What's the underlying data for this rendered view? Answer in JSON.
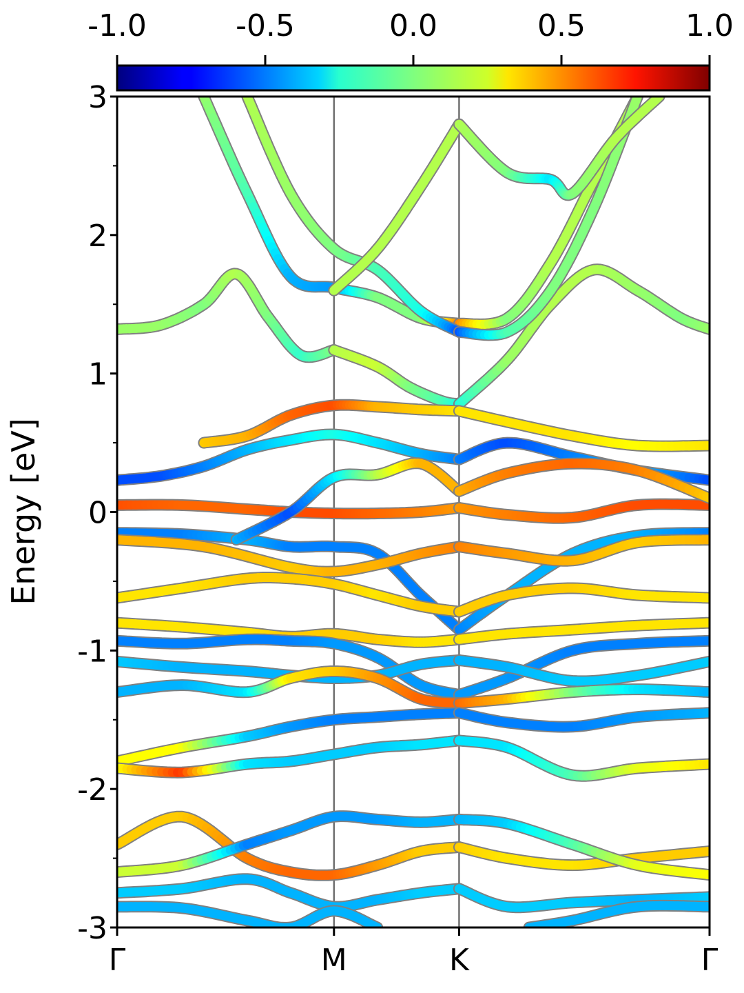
{
  "chart_data": {
    "type": "line",
    "title": "",
    "xlabel": "",
    "ylabel": "Energy [eV]",
    "ylim": [
      -3,
      3
    ],
    "y_ticks": [
      "3",
      "2",
      "1",
      "0",
      "-1",
      "-2",
      "-3"
    ],
    "y_tick_values": [
      3,
      2,
      1,
      0,
      -1,
      -2,
      -3
    ],
    "x_path": [
      0,
      1.0,
      1.577,
      2.732
    ],
    "x_ticks": [
      "Γ",
      "M",
      "K",
      "Γ"
    ],
    "colorbar": {
      "colormap": "jet",
      "range": [
        -1.0,
        1.0
      ],
      "ticks": [
        "-1.0",
        "-0.5",
        "0.0",
        "0.5",
        "1.0"
      ],
      "tick_values": [
        -1.0,
        -0.5,
        0.0,
        0.5,
        1.0
      ],
      "placement": "top"
    },
    "colors": {
      "line_outline": "#808080",
      "vertical_lines": "#707070",
      "frame": "#000000"
    },
    "series": [
      {
        "x": [
          0,
          0.2,
          0.4,
          0.55,
          0.7,
          0.85,
          1.0
        ],
        "y": [
          1.32,
          1.35,
          1.5,
          1.72,
          1.4,
          1.13,
          1.17
        ],
        "c": [
          0.05,
          0.05,
          0.0,
          0.1,
          0.0,
          -0.15,
          0.0
        ]
      },
      {
        "x": [
          1.0,
          1.2,
          1.35,
          1.5,
          1.577
        ],
        "y": [
          1.17,
          1.05,
          0.9,
          0.8,
          0.78
        ],
        "c": [
          0.1,
          0.15,
          0.0,
          -0.1,
          -0.2
        ]
      },
      {
        "x": [
          1.577,
          1.8,
          2.0,
          2.2,
          2.4,
          2.6,
          2.732
        ],
        "y": [
          0.78,
          1.1,
          1.5,
          1.75,
          1.6,
          1.4,
          1.32
        ],
        "c": [
          -0.2,
          0.05,
          0.1,
          0.1,
          0.05,
          0.0,
          0.05
        ]
      },
      {
        "x": [
          0.4,
          0.6,
          0.8,
          1.0,
          1.2,
          1.4,
          1.577
        ],
        "y": [
          0.5,
          0.55,
          0.7,
          0.77,
          0.76,
          0.74,
          0.73
        ],
        "c": [
          0.35,
          0.4,
          0.55,
          0.6,
          0.4,
          0.35,
          0.3
        ]
      },
      {
        "x": [
          1.577,
          1.8,
          2.1,
          2.4,
          2.732
        ],
        "y": [
          0.73,
          0.65,
          0.55,
          0.48,
          0.48
        ],
        "c": [
          0.3,
          0.3,
          0.3,
          0.25,
          0.3
        ]
      },
      {
        "x": [
          0,
          0.2,
          0.4,
          0.6,
          0.8,
          1.0,
          1.2,
          1.4,
          1.577
        ],
        "y": [
          0.23,
          0.26,
          0.33,
          0.45,
          0.52,
          0.56,
          0.5,
          0.42,
          0.38
        ],
        "c": [
          -0.6,
          -0.6,
          -0.5,
          -0.4,
          -0.3,
          -0.2,
          -0.3,
          -0.4,
          -0.5
        ]
      },
      {
        "x": [
          1.577,
          1.8,
          2.1,
          2.4,
          2.732
        ],
        "y": [
          0.38,
          0.5,
          0.4,
          0.3,
          0.23
        ],
        "c": [
          -0.5,
          -0.6,
          -0.5,
          -0.4,
          -0.6
        ]
      },
      {
        "x": [
          0,
          0.3,
          0.6,
          0.8,
          1.0,
          1.2,
          1.4,
          1.577
        ],
        "y": [
          0.05,
          0.05,
          0.02,
          0.0,
          -0.01,
          -0.01,
          0.0,
          0.03
        ],
        "c": [
          0.6,
          0.55,
          0.55,
          0.6,
          0.6,
          0.55,
          0.5,
          0.45
        ]
      },
      {
        "x": [
          1.577,
          1.8,
          2.1,
          2.4,
          2.732
        ],
        "y": [
          0.03,
          -0.02,
          -0.04,
          0.05,
          0.05
        ],
        "c": [
          0.45,
          0.5,
          0.55,
          0.6,
          0.6
        ]
      },
      {
        "x": [
          0,
          0.3,
          0.6,
          0.8,
          1.0,
          1.2,
          1.4,
          1.577
        ],
        "y": [
          -0.15,
          -0.16,
          -0.2,
          -0.25,
          -0.25,
          -0.3,
          -0.6,
          -0.85
        ],
        "c": [
          -0.5,
          -0.5,
          -0.4,
          -0.5,
          -0.5,
          -0.5,
          -0.5,
          -0.5
        ]
      },
      {
        "x": [
          1.577,
          1.8,
          2.1,
          2.4,
          2.732
        ],
        "y": [
          -0.85,
          -0.6,
          -0.3,
          -0.17,
          -0.15
        ],
        "c": [
          -0.5,
          -0.4,
          -0.4,
          -0.4,
          -0.5
        ]
      },
      {
        "x": [
          0,
          0.4,
          0.8,
          1.0,
          1.2,
          1.4,
          1.577
        ],
        "y": [
          -0.2,
          -0.25,
          -0.4,
          -0.43,
          -0.38,
          -0.3,
          -0.25
        ],
        "c": [
          0.4,
          0.4,
          0.35,
          0.4,
          0.4,
          0.45,
          0.5
        ]
      },
      {
        "x": [
          1.577,
          1.8,
          2.1,
          2.4,
          2.732
        ],
        "y": [
          -0.25,
          -0.3,
          -0.35,
          -0.22,
          -0.2
        ],
        "c": [
          0.5,
          0.45,
          0.4,
          0.35,
          0.4
        ]
      },
      {
        "x": [
          0,
          0.3,
          0.6,
          0.8,
          1.0,
          1.2,
          1.4,
          1.577
        ],
        "y": [
          -0.62,
          -0.55,
          -0.48,
          -0.48,
          -0.52,
          -0.6,
          -0.68,
          -0.72
        ],
        "c": [
          0.3,
          0.3,
          0.35,
          0.35,
          0.35,
          0.3,
          0.35,
          0.35
        ]
      },
      {
        "x": [
          1.577,
          1.8,
          2.1,
          2.4,
          2.732
        ],
        "y": [
          -0.72,
          -0.6,
          -0.55,
          -0.6,
          -0.62
        ],
        "c": [
          0.35,
          0.35,
          0.35,
          0.3,
          0.3
        ]
      },
      {
        "x": [
          0,
          0.3,
          0.6,
          0.8,
          1.0,
          1.2,
          1.4,
          1.577
        ],
        "y": [
          -0.8,
          -0.83,
          -0.87,
          -0.9,
          -0.88,
          -0.92,
          -0.94,
          -0.92
        ],
        "c": [
          0.3,
          0.3,
          0.3,
          0.35,
          0.35,
          0.35,
          0.3,
          0.3
        ]
      },
      {
        "x": [
          1.577,
          1.8,
          2.1,
          2.4,
          2.732
        ],
        "y": [
          -0.92,
          -0.88,
          -0.85,
          -0.82,
          -0.8
        ],
        "c": [
          0.3,
          0.3,
          0.3,
          0.3,
          0.3
        ]
      },
      {
        "x": [
          0,
          0.3,
          0.6,
          0.8,
          1.0,
          1.2,
          1.4,
          1.577
        ],
        "y": [
          -0.93,
          -0.95,
          -0.92,
          -0.93,
          -0.95,
          -1.05,
          -1.25,
          -1.32
        ],
        "c": [
          -0.5,
          -0.5,
          -0.5,
          -0.5,
          -0.45,
          -0.45,
          -0.45,
          -0.45
        ]
      },
      {
        "x": [
          1.577,
          1.8,
          2.1,
          2.4,
          2.732
        ],
        "y": [
          -1.32,
          -1.2,
          -1.0,
          -0.95,
          -0.93
        ],
        "c": [
          -0.45,
          -0.45,
          -0.5,
          -0.5,
          -0.5
        ]
      },
      {
        "x": [
          0,
          0.3,
          0.6,
          0.8,
          1.0,
          1.2,
          1.4,
          1.577
        ],
        "y": [
          -1.08,
          -1.12,
          -1.15,
          -1.18,
          -1.2,
          -1.18,
          -1.1,
          -1.07
        ],
        "c": [
          -0.35,
          -0.4,
          -0.4,
          -0.4,
          -0.4,
          -0.4,
          -0.4,
          -0.4
        ]
      },
      {
        "x": [
          1.577,
          1.8,
          2.1,
          2.4,
          2.732
        ],
        "y": [
          -1.07,
          -1.12,
          -1.22,
          -1.18,
          -1.08
        ],
        "c": [
          -0.4,
          -0.4,
          -0.35,
          -0.35,
          -0.35
        ]
      },
      {
        "x": [
          0,
          0.3,
          0.6,
          0.8,
          1.0,
          1.2,
          1.4,
          1.577
        ],
        "y": [
          -1.3,
          -1.25,
          -1.3,
          -1.2,
          -1.15,
          -1.2,
          -1.35,
          -1.38
        ],
        "c": [
          -0.4,
          -0.4,
          -0.3,
          0.3,
          0.35,
          0.45,
          0.55,
          0.55
        ]
      },
      {
        "x": [
          1.577,
          1.8,
          2.1,
          2.4,
          2.732
        ],
        "y": [
          -1.38,
          -1.35,
          -1.3,
          -1.28,
          -1.3
        ],
        "c": [
          0.55,
          0.4,
          0.0,
          -0.3,
          -0.4
        ]
      },
      {
        "x": [
          0,
          0.3,
          0.6,
          0.8,
          1.0,
          1.2,
          1.4,
          1.577
        ],
        "y": [
          -1.8,
          -1.7,
          -1.62,
          -1.55,
          -1.5,
          -1.48,
          -1.46,
          -1.45
        ],
        "c": [
          0.25,
          0.25,
          -0.35,
          -0.45,
          -0.5,
          -0.5,
          -0.5,
          -0.5
        ]
      },
      {
        "x": [
          1.577,
          1.8,
          2.1,
          2.4,
          2.732
        ],
        "y": [
          -1.45,
          -1.52,
          -1.55,
          -1.48,
          -1.45
        ],
        "c": [
          -0.5,
          -0.5,
          -0.5,
          -0.45,
          -0.4
        ]
      },
      {
        "x": [
          0,
          0.3,
          0.6,
          0.8,
          1.0,
          1.2,
          1.4,
          1.577
        ],
        "y": [
          -1.85,
          -1.88,
          -1.82,
          -1.8,
          -1.75,
          -1.7,
          -1.68,
          -1.65
        ],
        "c": [
          0.2,
          0.65,
          -0.3,
          -0.35,
          -0.35,
          -0.35,
          -0.3,
          -0.3
        ]
      },
      {
        "x": [
          1.577,
          1.8,
          2.1,
          2.4,
          2.732
        ],
        "y": [
          -1.65,
          -1.7,
          -1.9,
          -1.85,
          -1.82
        ],
        "c": [
          -0.3,
          -0.3,
          -0.1,
          0.2,
          0.3
        ]
      },
      {
        "x": [
          0,
          0.3,
          0.6,
          0.8,
          1.0,
          1.2,
          1.4,
          1.577
        ],
        "y": [
          -2.4,
          -2.2,
          -2.5,
          -2.6,
          -2.62,
          -2.55,
          -2.45,
          -2.42
        ],
        "c": [
          0.35,
          0.35,
          0.5,
          0.55,
          0.55,
          0.45,
          0.35,
          0.35
        ]
      },
      {
        "x": [
          1.577,
          1.8,
          2.1,
          2.4,
          2.732
        ],
        "y": [
          -2.42,
          -2.5,
          -2.55,
          -2.5,
          -2.45
        ],
        "c": [
          0.35,
          0.3,
          0.3,
          0.35,
          0.35
        ]
      },
      {
        "x": [
          0,
          0.3,
          0.6,
          0.8,
          1.0,
          1.2,
          1.4,
          1.577
        ],
        "y": [
          -2.6,
          -2.55,
          -2.4,
          -2.3,
          -2.2,
          -2.22,
          -2.24,
          -2.22
        ],
        "c": [
          0.15,
          0.15,
          -0.5,
          -0.45,
          -0.45,
          -0.45,
          -0.4,
          -0.4
        ]
      },
      {
        "x": [
          1.577,
          1.8,
          2.1,
          2.4,
          2.732
        ],
        "y": [
          -2.22,
          -2.25,
          -2.4,
          -2.55,
          -2.62
        ],
        "c": [
          -0.4,
          -0.35,
          -0.1,
          0.2,
          0.25
        ]
      },
      {
        "x": [
          0,
          0.3,
          0.6,
          0.8,
          1.0,
          1.2,
          1.4,
          1.577
        ],
        "y": [
          -2.75,
          -2.72,
          -2.65,
          -2.75,
          -2.85,
          -2.8,
          -2.75,
          -2.72
        ],
        "c": [
          -0.35,
          -0.35,
          -0.4,
          -0.4,
          -0.4,
          -0.4,
          -0.35,
          -0.35
        ]
      },
      {
        "x": [
          1.577,
          1.8,
          2.1,
          2.4,
          2.732
        ],
        "y": [
          -2.72,
          -2.85,
          -2.82,
          -2.8,
          -2.78
        ],
        "c": [
          -0.35,
          -0.35,
          -0.35,
          -0.4,
          -0.35
        ]
      },
      {
        "x": [
          0,
          0.3,
          0.6,
          0.8,
          1.0,
          1.2
        ],
        "y": [
          -2.85,
          -2.86,
          -2.95,
          -3.0,
          -2.88,
          -3.0
        ],
        "c": [
          -0.4,
          -0.4,
          -0.4,
          -0.4,
          -0.4,
          -0.4
        ]
      },
      {
        "x": [
          1.9,
          2.1,
          2.4,
          2.732
        ],
        "y": [
          -3.0,
          -2.95,
          -2.85,
          -2.85
        ],
        "c": [
          -0.4,
          -0.4,
          -0.4,
          -0.4
        ]
      },
      {
        "x": [
          0.4,
          0.6,
          0.8,
          1.0,
          1.2,
          1.4,
          1.577
        ],
        "y": [
          3.0,
          2.3,
          1.7,
          1.62,
          1.55,
          1.4,
          1.36
        ],
        "c": [
          0.05,
          -0.1,
          -0.4,
          -0.45,
          0.0,
          0.0,
          0.5
        ]
      },
      {
        "x": [
          1.577,
          1.8,
          2.0,
          2.2,
          2.4
        ],
        "y": [
          1.36,
          1.4,
          1.8,
          2.4,
          3.0
        ],
        "c": [
          0.5,
          0.0,
          0.1,
          0.1,
          0.1
        ]
      },
      {
        "x": [
          0.6,
          0.8,
          1.0,
          1.2,
          1.4,
          1.577
        ],
        "y": [
          3.0,
          2.3,
          1.9,
          1.75,
          1.45,
          1.3
        ],
        "c": [
          0.1,
          0.05,
          0.0,
          -0.1,
          -0.2,
          -0.6
        ]
      },
      {
        "x": [
          1.577,
          1.8,
          2.0,
          2.2,
          2.4
        ],
        "y": [
          1.3,
          1.3,
          1.6,
          2.2,
          3.0
        ],
        "c": [
          -0.6,
          -0.1,
          0.0,
          0.0,
          0.05
        ]
      },
      {
        "x": [
          1.0,
          1.2,
          1.4,
          1.577
        ],
        "y": [
          1.6,
          1.9,
          2.35,
          2.8
        ],
        "c": [
          0.1,
          0.1,
          0.1,
          0.1
        ]
      },
      {
        "x": [
          1.577,
          1.8,
          2.0,
          2.1,
          2.3,
          2.5
        ],
        "y": [
          2.8,
          2.45,
          2.4,
          2.3,
          2.7,
          3.0
        ],
        "c": [
          0.1,
          0.0,
          -0.3,
          0.0,
          0.1,
          0.1
        ]
      },
      {
        "x": [
          0.55,
          0.8,
          1.0,
          1.2,
          1.4,
          1.577
        ],
        "y": [
          -0.2,
          -0.0,
          0.25,
          0.27,
          0.35,
          0.15
        ],
        "c": [
          -0.4,
          -0.6,
          -0.3,
          0.1,
          0.4,
          0.4
        ]
      },
      {
        "x": [
          1.577,
          1.8,
          2.1,
          2.4,
          2.732
        ],
        "y": [
          0.15,
          0.28,
          0.35,
          0.3,
          0.1
        ],
        "c": [
          0.4,
          0.5,
          0.55,
          0.5,
          0.35
        ]
      }
    ]
  }
}
